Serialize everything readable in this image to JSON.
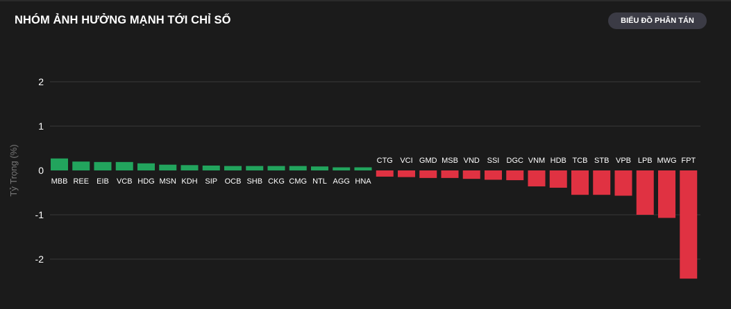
{
  "header": {
    "title": "NHÓM ẢNH HƯỞNG MẠNH TỚI CHỈ SỐ",
    "scatter_button": "BIỂU ĐỒ PHÂN TÁN"
  },
  "colors": {
    "positive": "#22a45d",
    "negative": "#e03242",
    "background": "#1b1b1b",
    "grid": "#3a3a3a"
  },
  "chart_data": {
    "type": "bar",
    "title": "",
    "xlabel": "",
    "ylabel": "Tỷ Trọng (%)",
    "ylim": [
      -2.5,
      2.2
    ],
    "yticks": [
      2,
      1,
      0,
      -1,
      -2
    ],
    "grid": true,
    "legend": "none",
    "categories": [
      "MBB",
      "REE",
      "EIB",
      "VCB",
      "HDG",
      "MSN",
      "KDH",
      "SIP",
      "OCB",
      "SHB",
      "CKG",
      "CMG",
      "NTL",
      "AGG",
      "HNA",
      "CTG",
      "VCI",
      "GMD",
      "MSB",
      "VND",
      "SSI",
      "DGC",
      "VNM",
      "HDB",
      "TCB",
      "STB",
      "VPB",
      "LPB",
      "MWG",
      "FPT"
    ],
    "values": [
      0.27,
      0.2,
      0.19,
      0.19,
      0.16,
      0.13,
      0.12,
      0.11,
      0.1,
      0.1,
      0.1,
      0.1,
      0.09,
      0.07,
      0.07,
      -0.14,
      -0.15,
      -0.17,
      -0.17,
      -0.19,
      -0.21,
      -0.22,
      -0.36,
      -0.39,
      -0.55,
      -0.55,
      -0.57,
      -1.0,
      -1.07,
      -2.44
    ]
  }
}
